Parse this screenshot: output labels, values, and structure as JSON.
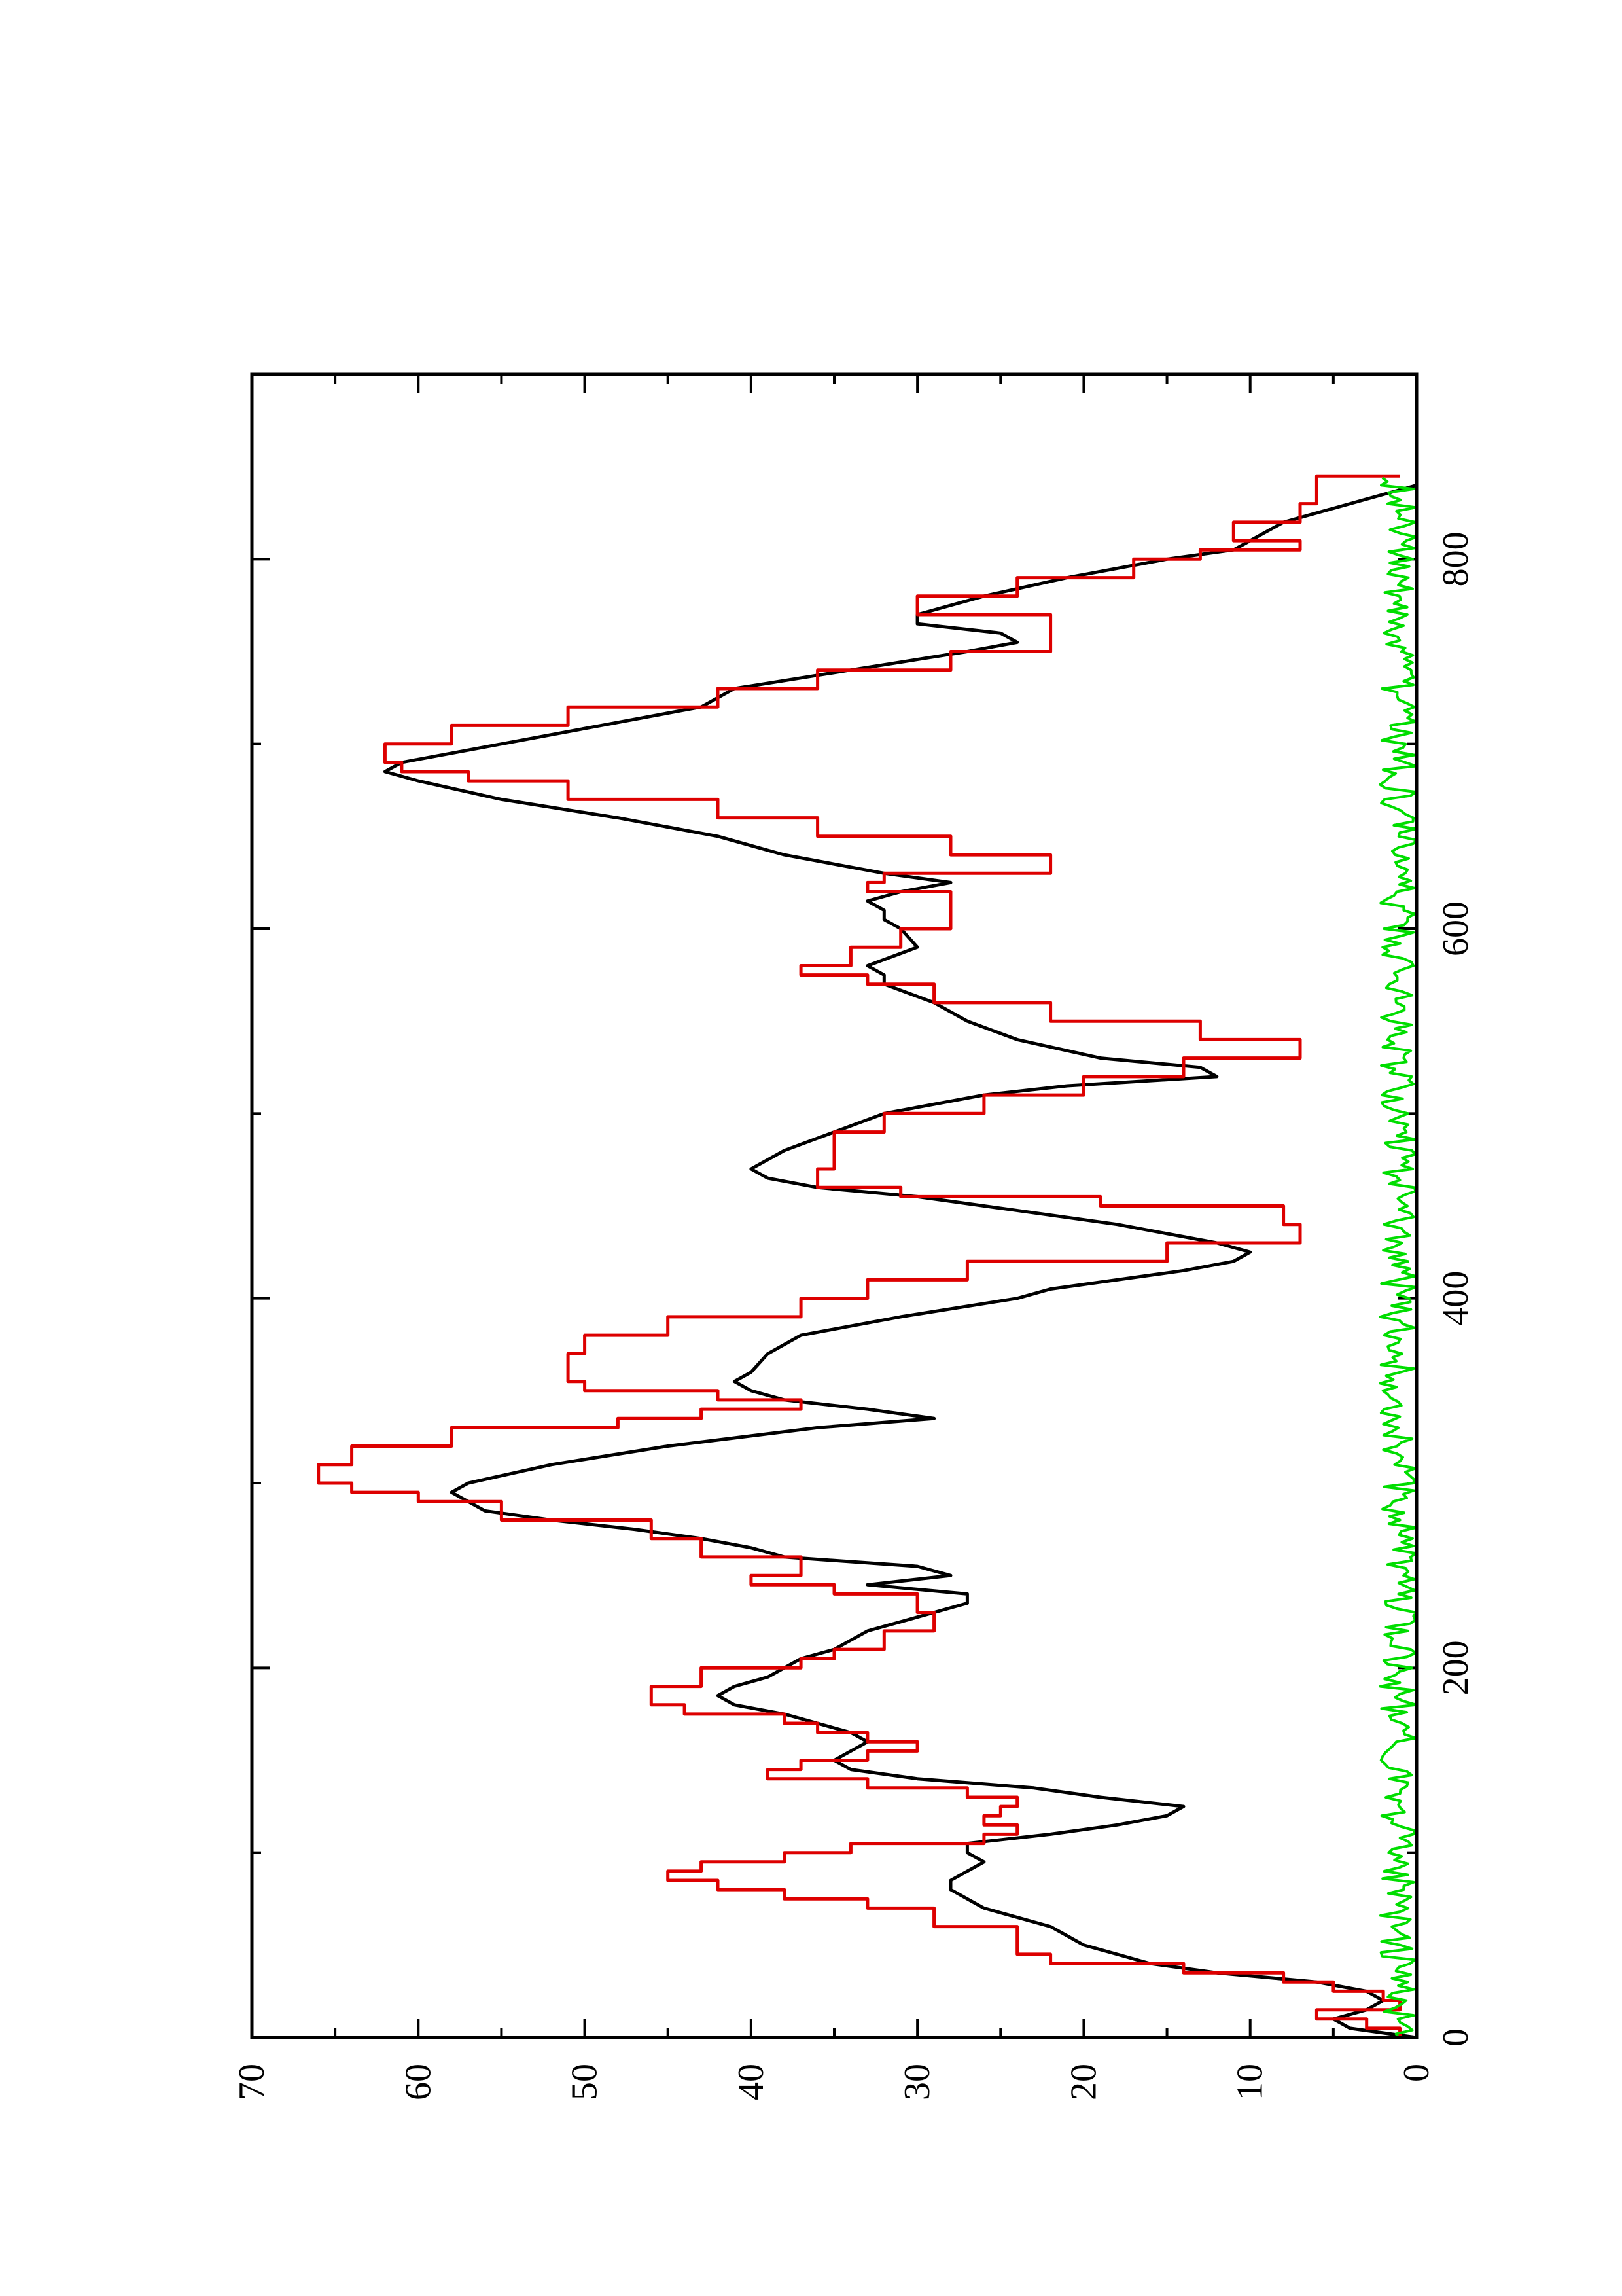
{
  "chart_data": {
    "type": "line",
    "orientation": "rotated-90-counterclockwise",
    "title": "",
    "xlabel": "",
    "ylabel": "",
    "xlim": [
      0,
      900
    ],
    "ylim": [
      0,
      70
    ],
    "x_ticks": [
      0,
      200,
      400,
      600,
      800
    ],
    "x_tick_labels": [
      "0",
      "200",
      "400",
      "600",
      "800"
    ],
    "y_ticks": [
      0,
      10,
      20,
      30,
      40,
      50,
      60,
      70
    ],
    "y_tick_labels": [
      "0",
      "10",
      "20",
      "30",
      "40",
      "50",
      "60",
      "70"
    ],
    "grid": false,
    "legend": "none",
    "series": [
      {
        "color": "#000000",
        "style": "smooth",
        "x": [
          0,
          5,
          10,
          15,
          20,
          25,
          30,
          35,
          40,
          45,
          50,
          60,
          70,
          75,
          80,
          85,
          90,
          95,
          100,
          105,
          110,
          115,
          120,
          125,
          130,
          135,
          140,
          145,
          150,
          155,
          160,
          165,
          170,
          175,
          180,
          185,
          190,
          195,
          200,
          205,
          210,
          215,
          220,
          225,
          230,
          235,
          240,
          245,
          250,
          255,
          260,
          265,
          270,
          275,
          280,
          285,
          290,
          295,
          300,
          310,
          320,
          330,
          335,
          340,
          345,
          350,
          355,
          360,
          370,
          380,
          390,
          400,
          405,
          410,
          415,
          420,
          425,
          430,
          440,
          450,
          455,
          460,
          465,
          470,
          475,
          480,
          490,
          500,
          510,
          515,
          520,
          525,
          530,
          540,
          550,
          560,
          570,
          575,
          580,
          590,
          600,
          605,
          610,
          615,
          620,
          625,
          630,
          640,
          650,
          660,
          670,
          680,
          685,
          690,
          695,
          700,
          710,
          720,
          730,
          740,
          750,
          755,
          760,
          765,
          770,
          780,
          790,
          800,
          805,
          810,
          820,
          830,
          840,
          845
        ],
        "y": [
          0,
          4,
          5,
          3,
          2,
          3,
          6,
          12,
          16,
          18,
          20,
          22,
          26,
          27,
          28,
          28,
          27,
          26,
          27,
          27,
          22,
          18,
          15,
          14,
          19,
          23,
          30,
          34,
          35,
          34,
          33,
          34,
          36,
          38,
          41,
          42,
          41,
          39,
          38,
          37,
          35,
          34,
          33,
          31,
          29,
          27,
          27,
          33,
          28,
          30,
          38,
          40,
          43,
          47,
          52,
          56,
          57,
          58,
          57,
          52,
          45,
          36,
          29,
          33,
          38,
          40,
          41,
          40,
          39,
          37,
          31,
          24,
          22,
          18,
          14,
          11,
          10,
          12,
          18,
          26,
          30,
          36,
          39,
          40,
          39,
          38,
          35,
          32,
          26,
          21,
          12,
          13,
          19,
          24,
          27,
          29,
          32,
          32,
          33,
          30,
          31,
          32,
          32,
          33,
          31,
          28,
          32,
          38,
          42,
          48,
          55,
          60,
          62,
          61,
          58,
          55,
          49,
          43,
          41,
          34,
          27,
          24,
          25,
          30,
          30,
          26,
          21,
          15,
          11,
          10,
          8,
          4,
          0,
          0
        ]
      },
      {
        "color": "#dd0000",
        "style": "step",
        "x": [
          0,
          5,
          10,
          15,
          20,
          25,
          30,
          35,
          40,
          45,
          50,
          60,
          70,
          75,
          80,
          85,
          90,
          95,
          100,
          105,
          110,
          115,
          120,
          125,
          130,
          135,
          140,
          145,
          150,
          155,
          160,
          165,
          170,
          175,
          180,
          190,
          200,
          205,
          210,
          220,
          230,
          240,
          245,
          250,
          260,
          270,
          280,
          290,
          295,
          300,
          310,
          320,
          330,
          335,
          340,
          345,
          350,
          355,
          360,
          370,
          380,
          390,
          400,
          410,
          420,
          430,
          440,
          450,
          455,
          460,
          470,
          480,
          490,
          500,
          510,
          520,
          530,
          540,
          550,
          560,
          570,
          575,
          580,
          590,
          600,
          610,
          620,
          625,
          630,
          640,
          650,
          660,
          670,
          680,
          685,
          690,
          700,
          710,
          720,
          730,
          740,
          750,
          760,
          770,
          780,
          790,
          800,
          805,
          810,
          820,
          830,
          845
        ],
        "y": [
          1,
          3,
          6,
          1,
          2,
          5,
          8,
          14,
          22,
          24,
          24,
          29,
          33,
          38,
          42,
          45,
          43,
          38,
          34,
          26,
          24,
          26,
          25,
          24,
          27,
          33,
          39,
          37,
          33,
          30,
          33,
          36,
          38,
          44,
          46,
          43,
          37,
          35,
          32,
          29,
          30,
          35,
          40,
          37,
          43,
          46,
          55,
          60,
          64,
          66,
          64,
          58,
          48,
          43,
          37,
          42,
          50,
          51,
          51,
          50,
          45,
          37,
          33,
          27,
          15,
          7,
          8,
          19,
          31,
          36,
          35,
          35,
          32,
          26,
          20,
          14,
          7,
          13,
          22,
          29,
          33,
          37,
          34,
          31,
          28,
          28,
          33,
          32,
          22,
          28,
          36,
          42,
          51,
          57,
          61,
          62,
          58,
          51,
          42,
          36,
          28,
          22,
          22,
          30,
          24,
          17,
          13,
          7,
          11,
          7,
          6,
          1
        ]
      },
      {
        "color": "#00dd00",
        "style": "noise",
        "amplitude": 2.2,
        "xrange": [
          0,
          845
        ]
      }
    ]
  }
}
